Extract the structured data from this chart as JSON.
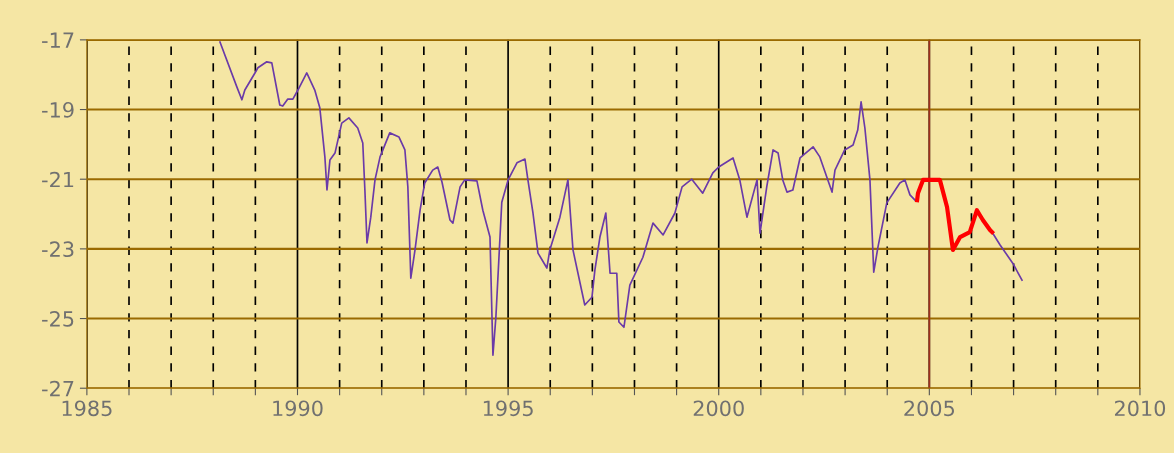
{
  "chart_data": {
    "type": "line",
    "xlim": [
      1985,
      2010
    ],
    "xticks": [
      1985,
      {
        "value": 1986,
        "label": null
      },
      {
        "value": 1987,
        "label": null
      },
      {
        "value": 1988,
        "label": null
      },
      {
        "value": 1989,
        "label": null
      },
      1990,
      {
        "value": 1991,
        "label": null
      },
      {
        "value": 1992,
        "label": null
      },
      {
        "value": 1993,
        "label": null
      },
      {
        "value": 1994,
        "label": null
      },
      1995,
      {
        "value": 1996,
        "label": null
      },
      {
        "value": 1997,
        "label": null
      },
      {
        "value": 1998,
        "label": null
      },
      {
        "value": 1999,
        "label": null
      },
      2000,
      {
        "value": 2001,
        "label": null
      },
      {
        "value": 2002,
        "label": null
      },
      {
        "value": 2003,
        "label": null
      },
      {
        "value": 2004,
        "label": null
      },
      2005,
      {
        "value": 2006,
        "label": null
      },
      {
        "value": 2007,
        "label": null
      },
      {
        "value": 2008,
        "label": null
      },
      {
        "value": 2009,
        "label": null
      },
      2010
    ],
    "ylim": [
      -27,
      -17
    ],
    "yticks": [
      -17,
      -19,
      -21,
      -23,
      -25,
      -27
    ],
    "grid": true,
    "ref_lines": [
      {
        "axis": "x",
        "value": 2005,
        "color": "#a0301a"
      }
    ],
    "series": [
      {
        "color": "#6a3aa8",
        "x": [
          1988.16,
          1988.56,
          1988.68,
          1988.75,
          1988.99,
          1989.06,
          1989.27,
          1989.39,
          1989.58,
          1989.65,
          1989.77,
          1989.89,
          1990.01,
          1990.22,
          1990.41,
          1990.53,
          1990.65,
          1990.7,
          1990.77,
          1990.89,
          1991.05,
          1991.22,
          1991.43,
          1991.55,
          1991.6,
          1991.65,
          1991.74,
          1991.84,
          1991.96,
          1992.19,
          1992.41,
          1992.55,
          1992.62,
          1992.69,
          1992.79,
          1992.91,
          1993.02,
          1993.21,
          1993.33,
          1993.43,
          1993.62,
          1993.69,
          1993.86,
          1993.97,
          1994.26,
          1994.4,
          1994.57,
          1994.64,
          1994.71,
          1994.85,
          1995.0,
          1995.21,
          1995.4,
          1995.47,
          1995.59,
          1995.71,
          1995.92,
          1995.99,
          1996.23,
          1996.42,
          1996.54,
          1996.82,
          1996.99,
          1997.06,
          1997.18,
          1997.32,
          1997.42,
          1997.58,
          1997.63,
          1997.75,
          1997.89,
          1998.2,
          1998.44,
          1998.68,
          1998.96,
          1999.13,
          1999.36,
          1999.62,
          1999.86,
          2000.0,
          2000.34,
          2000.5,
          2000.67,
          2000.91,
          2000.98,
          2001.14,
          2001.29,
          2001.41,
          2001.52,
          2001.62,
          2001.76,
          2001.93,
          2002.24,
          2002.4,
          2002.59,
          2002.69,
          2002.76,
          2002.99,
          2003.19,
          2003.3,
          2003.38,
          2003.47,
          2003.59,
          2003.68,
          2003.78,
          2003.99,
          2004.3,
          2004.42,
          2004.54,
          2004.66,
          2005.5,
          2006.49,
          2006.68,
          2006.98,
          2007.2
        ],
        "values": [
          -17.06,
          -18.35,
          -18.72,
          -18.44,
          -17.95,
          -17.8,
          -17.63,
          -17.66,
          -18.87,
          -18.9,
          -18.7,
          -18.7,
          -18.44,
          -17.95,
          -18.44,
          -18.95,
          -20.36,
          -21.31,
          -20.45,
          -20.25,
          -19.39,
          -19.24,
          -19.53,
          -19.96,
          -21.31,
          -22.83,
          -22.09,
          -21.02,
          -20.36,
          -19.67,
          -19.79,
          -20.16,
          -21.22,
          -23.84,
          -23.03,
          -21.89,
          -21.11,
          -20.74,
          -20.65,
          -21.08,
          -22.17,
          -22.26,
          -21.22,
          -21.02,
          -21.05,
          -21.89,
          -22.66,
          -26.05,
          -24.96,
          -21.66,
          -21.02,
          -20.53,
          -20.42,
          -21.02,
          -21.97,
          -23.12,
          -23.55,
          -23.03,
          -22.09,
          -21.02,
          -23.03,
          -24.61,
          -24.39,
          -23.61,
          -22.66,
          -21.97,
          -23.7,
          -23.7,
          -25.1,
          -25.25,
          -24.04,
          -23.24,
          -22.26,
          -22.6,
          -21.97,
          -21.22,
          -21.0,
          -21.4,
          -20.82,
          -20.65,
          -20.39,
          -21.02,
          -22.09,
          -21.02,
          -22.55,
          -21.22,
          -20.16,
          -20.25,
          -21.02,
          -21.37,
          -21.31,
          -20.39,
          -20.07,
          -20.36,
          -21.02,
          -21.37,
          -20.74,
          -20.16,
          -20.02,
          -19.59,
          -18.78,
          -19.53,
          -21.02,
          -23.67,
          -22.95,
          -21.68,
          -21.11,
          -21.02,
          -21.45,
          -21.6,
          null,
          -22.52,
          -22.89,
          -23.41,
          -23.9
        ]
      },
      {
        "color": "#ff0000",
        "x": [
          2004.71,
          2004.73,
          2004.85,
          2005.25,
          2005.42,
          2005.56,
          2005.73,
          2005.96,
          2006.13,
          2006.27,
          2006.44,
          2006.49
        ],
        "values": [
          -21.6,
          -21.4,
          -21.02,
          -21.02,
          -21.8,
          -23.03,
          -22.66,
          -22.52,
          -21.89,
          -22.17,
          -22.46,
          -22.52
        ]
      }
    ]
  }
}
